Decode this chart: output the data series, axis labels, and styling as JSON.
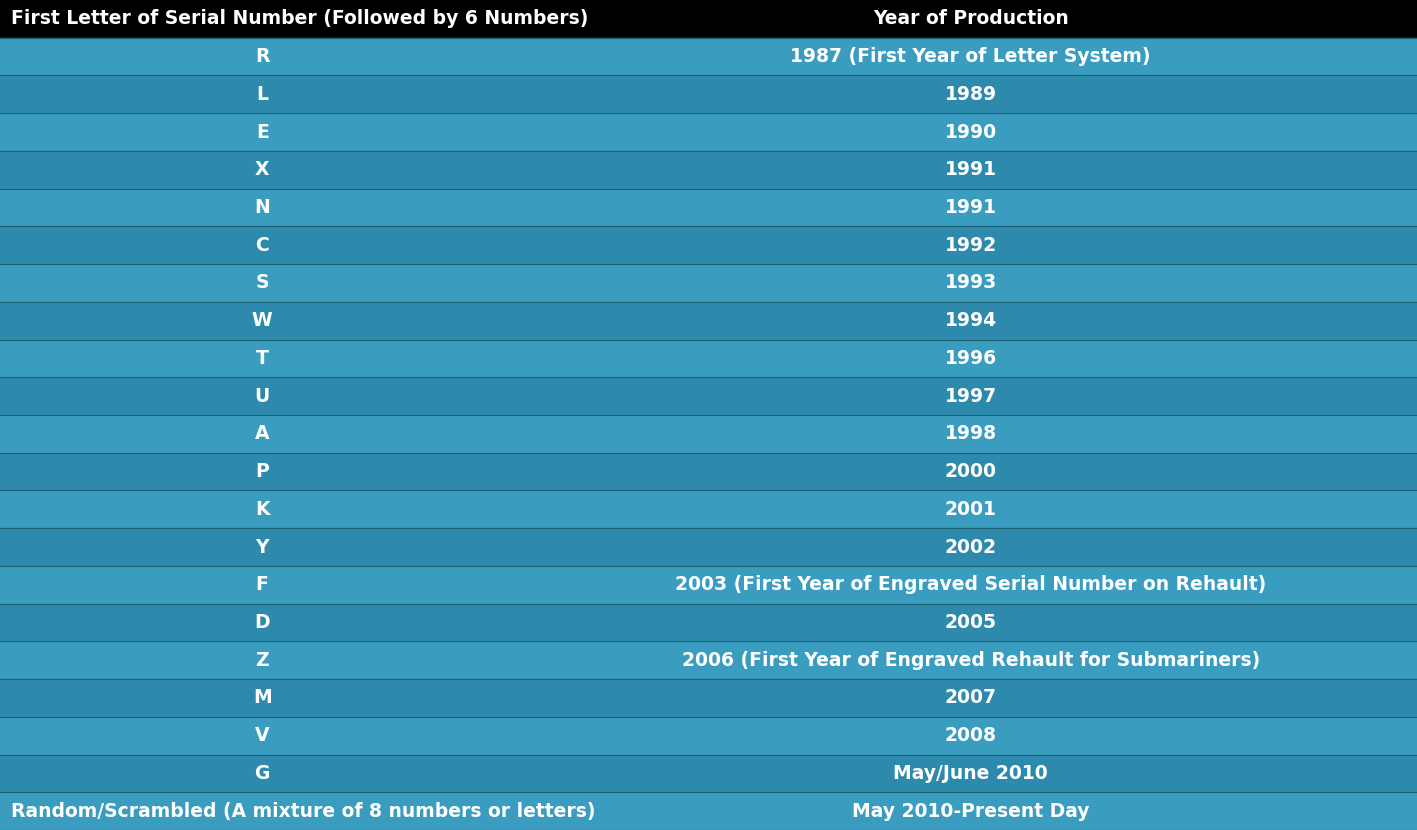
{
  "header_col1": "First Letter of Serial Number (Followed by 6 Numbers)",
  "header_col2": "Year of Production",
  "header_bg": "#000000",
  "header_text_color": "#ffffff",
  "rows": [
    {
      "letter": "R",
      "year": "1987 (First Year of Letter System)"
    },
    {
      "letter": "L",
      "year": "1989"
    },
    {
      "letter": "E",
      "year": "1990"
    },
    {
      "letter": "X",
      "year": "1991"
    },
    {
      "letter": "N",
      "year": "1991"
    },
    {
      "letter": "C",
      "year": "1992"
    },
    {
      "letter": "S",
      "year": "1993"
    },
    {
      "letter": "W",
      "year": "1994"
    },
    {
      "letter": "T",
      "year": "1996"
    },
    {
      "letter": "U",
      "year": "1997"
    },
    {
      "letter": "A",
      "year": "1998"
    },
    {
      "letter": "P",
      "year": "2000"
    },
    {
      "letter": "K",
      "year": "2001"
    },
    {
      "letter": "Y",
      "year": "2002"
    },
    {
      "letter": "F",
      "year": "2003 (First Year of Engraved Serial Number on Rehault)"
    },
    {
      "letter": "D",
      "year": "2005"
    },
    {
      "letter": "Z",
      "year": "2006 (First Year of Engraved Rehault for Submariners)"
    },
    {
      "letter": "M",
      "year": "2007"
    },
    {
      "letter": "V",
      "year": "2008"
    },
    {
      "letter": "G",
      "year": "May/June 2010"
    },
    {
      "letter": "Random/Scrambled (A mixture of 8 numbers or letters)",
      "year": "May 2010-Present Day"
    }
  ],
  "row_colors": [
    "#3a9dbf",
    "#2e8aad"
  ],
  "text_color": "#ffffff",
  "col_split": 0.37,
  "font_size": 13.5,
  "header_font_size": 13.5
}
